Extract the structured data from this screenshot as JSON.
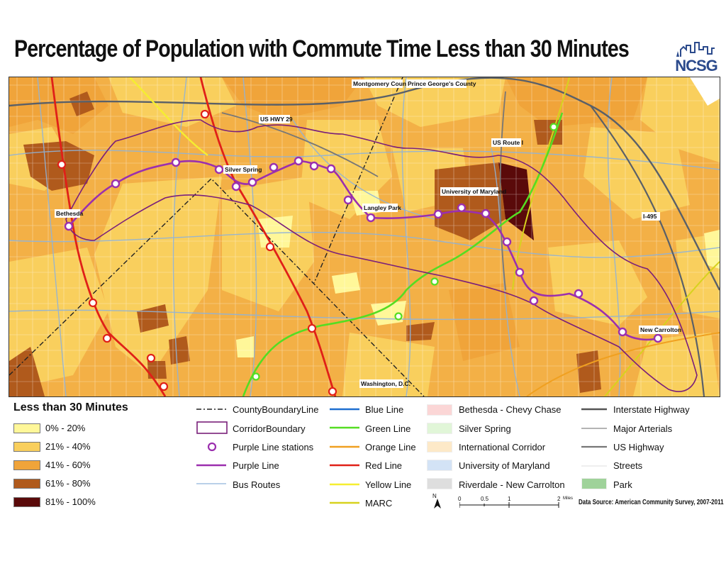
{
  "title": "Percentage of Population with Commute Time Less than 30 Minutes",
  "logo": {
    "text": "NCSG",
    "icon": "city-skyline-icon",
    "color": "#2b4a8c"
  },
  "map_labels": {
    "montgomery": "Montgomery County",
    "princegeorges": "Prince George's County",
    "ushwy29": "US HWY 29",
    "usroute1": "US Route I",
    "silverspring": "Silver Spring",
    "umd": "University of Maryland",
    "bethesda": "Bethesda",
    "langley": "Langley Park",
    "i495": "I-495",
    "newcarrolton": "New Carrolton",
    "washington": "Washington, D.C."
  },
  "legend_classes": {
    "title": "Less than 30 Minutes",
    "items": [
      {
        "label": "0% - 20%",
        "color": "#fff799"
      },
      {
        "label": "21% - 40%",
        "color": "#f9cf5d"
      },
      {
        "label": "41% - 60%",
        "color": "#f0a43a"
      },
      {
        "label": "61% - 80%",
        "color": "#b05a1c"
      },
      {
        "label": "81% - 100%",
        "color": "#5a0a0a"
      }
    ]
  },
  "legend_lines1": [
    {
      "label": "CountyBoundaryLine",
      "icon": "dashdot-line-icon"
    },
    {
      "label": "CorridorBoundary",
      "icon": "purple-box-icon"
    },
    {
      "label": "Purple Line stations",
      "icon": "purple-circle-icon"
    },
    {
      "label": "Purple Line",
      "icon": "purple-line-icon"
    },
    {
      "label": "Bus Routes",
      "icon": "blue-thin-line-icon"
    }
  ],
  "legend_lines2": [
    {
      "label": "Blue Line",
      "color": "#1f6fd0"
    },
    {
      "label": "Green Line",
      "color": "#55dd22"
    },
    {
      "label": "Orange Line",
      "color": "#f0a020"
    },
    {
      "label": "Red Line",
      "color": "#e02018"
    },
    {
      "label": "Yellow Line",
      "color": "#f5ee30"
    },
    {
      "label": "MARC",
      "color": "#d7d21e"
    }
  ],
  "legend_areas": [
    {
      "label": "Bethesda - Chevy Chase",
      "color": "#fbd6d6"
    },
    {
      "label": "Silver Spring",
      "color": "#e1f6d8"
    },
    {
      "label": "International Corridor",
      "color": "#fde9c8"
    },
    {
      "label": "University of Maryland",
      "color": "#d3e3f6"
    },
    {
      "label": "Riverdale - New Carrolton",
      "color": "#dedede"
    }
  ],
  "legend_roads": [
    {
      "label": "Interstate Highway",
      "color": "#555555"
    },
    {
      "label": "Major Arterials",
      "color": "#888888"
    },
    {
      "label": "US Highway",
      "color": "#777777"
    },
    {
      "label": "Streets",
      "color": "#dddddd"
    },
    {
      "label": "Park",
      "color": "#9fd29a"
    }
  ],
  "scale": {
    "ticks": [
      "0",
      "0.5",
      "1",
      "2"
    ],
    "unit": "Miles"
  },
  "north": "N",
  "source": "Data Source: American Community Survey, 2007-2011"
}
